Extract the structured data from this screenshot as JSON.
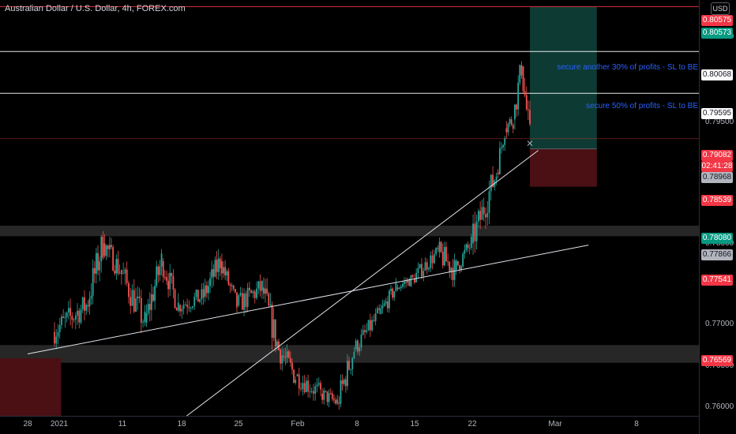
{
  "header": {
    "title": "Australian Dollar / U.S. Dollar, 4h, FOREX.com",
    "currency": "USD"
  },
  "price_axis": {
    "ticks": [
      "0.80500",
      "0.79500",
      "0.78000",
      "0.77000",
      "0.76500",
      "0.76000"
    ]
  },
  "price_tags": [
    {
      "value": "0.80575",
      "bg": "#f23645",
      "fg": "#ffffff"
    },
    {
      "value": "0.80573",
      "bg": "#089981",
      "fg": "#ffffff"
    },
    {
      "value": "0.80068",
      "bg": "#ffffff",
      "fg": "#131722"
    },
    {
      "value": "0.79595",
      "bg": "#ffffff",
      "fg": "#131722"
    },
    {
      "value": "0.79082",
      "bg": "#f23645",
      "fg": "#ffffff"
    },
    {
      "value": "02:41:28",
      "bg": "#f23645",
      "fg": "#ffffff"
    },
    {
      "value": "0.78968",
      "bg": "#b2b5be",
      "fg": "#131722"
    },
    {
      "value": "0.78539",
      "bg": "#f23645",
      "fg": "#ffffff"
    },
    {
      "value": "0.78080",
      "bg": "#089981",
      "fg": "#ffffff"
    },
    {
      "value": "0.77866",
      "bg": "#b2b5be",
      "fg": "#131722"
    },
    {
      "value": "0.77541",
      "bg": "#f23645",
      "fg": "#ffffff"
    },
    {
      "value": "0.76569",
      "bg": "#f23645",
      "fg": "#ffffff"
    }
  ],
  "time_axis": {
    "labels": [
      "28",
      "2021",
      "11",
      "18",
      "25",
      "Feb",
      "8",
      "15",
      "22",
      "Mar",
      "8"
    ]
  },
  "annotations": [
    {
      "text": "secure another 30% of profits - SL to BE"
    },
    {
      "text": "secure 50% of profits - SL to BE"
    }
  ],
  "colors": {
    "background": "#000000",
    "up": "#26a69a",
    "down": "#ef5350",
    "profit_zone": "#0d3a33",
    "loss_zone": "#4a1014",
    "zone_gray": "#2b2b2b"
  },
  "chart_data": {
    "type": "candlestick",
    "symbol": "Australian Dollar / U.S. Dollar",
    "timeframe": "4h",
    "source": "FOREX.com",
    "x_labels": [
      "28",
      "2021",
      "11",
      "18",
      "25",
      "Feb",
      "8",
      "15",
      "22",
      "Mar",
      "8"
    ],
    "ylim": [
      0.7595,
      0.8065
    ],
    "horizontal_lines": [
      0.80575,
      0.80068,
      0.79595,
      0.79082
    ],
    "trade": {
      "entry": 0.78968,
      "target": 0.80575,
      "stop": 0.78539
    },
    "zones": [
      {
        "low": 0.7798,
        "high": 0.781
      },
      {
        "low": 0.7655,
        "high": 0.7675
      }
    ],
    "trend_lines": [
      {
        "from": [
          "2020-12-28",
          0.7665
        ],
        "to": [
          "2021-03-05",
          0.7788
        ]
      },
      {
        "from": [
          "2021-01-16",
          0.7595
        ],
        "to": [
          "2021-02-27",
          0.7895
        ]
      }
    ],
    "ohlc": [
      [
        "2020-12-31",
        0.764,
        0.77,
        0.762,
        0.769
      ],
      [
        "2021-01-04",
        0.769,
        0.7745,
        0.766,
        0.772
      ],
      [
        "2021-01-06",
        0.772,
        0.781,
        0.77,
        0.779
      ],
      [
        "2021-01-08",
        0.779,
        0.7805,
        0.773,
        0.776
      ],
      [
        "2021-01-11",
        0.776,
        0.7775,
        0.768,
        0.77
      ],
      [
        "2021-01-13",
        0.77,
        0.7785,
        0.769,
        0.777
      ],
      [
        "2021-01-15",
        0.777,
        0.778,
        0.77,
        0.772
      ],
      [
        "2021-01-18",
        0.772,
        0.774,
        0.768,
        0.773
      ],
      [
        "2021-01-20",
        0.773,
        0.779,
        0.771,
        0.777
      ],
      [
        "2021-01-22",
        0.777,
        0.7775,
        0.771,
        0.772
      ],
      [
        "2021-01-25",
        0.772,
        0.776,
        0.769,
        0.774
      ],
      [
        "2021-01-27",
        0.774,
        0.775,
        0.765,
        0.767
      ],
      [
        "2021-01-29",
        0.767,
        0.77,
        0.762,
        0.764
      ],
      [
        "2021-02-01",
        0.764,
        0.766,
        0.7595,
        0.762
      ],
      [
        "2021-02-03",
        0.762,
        0.764,
        0.759,
        0.761
      ],
      [
        "2021-02-05",
        0.761,
        0.768,
        0.7595,
        0.767
      ],
      [
        "2021-02-08",
        0.767,
        0.772,
        0.766,
        0.771
      ],
      [
        "2021-02-10",
        0.771,
        0.775,
        0.77,
        0.774
      ],
      [
        "2021-02-12",
        0.774,
        0.776,
        0.772,
        0.775
      ],
      [
        "2021-02-15",
        0.775,
        0.779,
        0.774,
        0.778
      ],
      [
        "2021-02-17",
        0.778,
        0.781,
        0.773,
        0.776
      ],
      [
        "2021-02-19",
        0.776,
        0.78,
        0.774,
        0.779
      ],
      [
        "2021-02-22",
        0.779,
        0.788,
        0.778,
        0.787
      ],
      [
        "2021-02-23",
        0.787,
        0.793,
        0.786,
        0.792
      ],
      [
        "2021-02-24",
        0.792,
        0.795,
        0.789,
        0.793
      ],
      [
        "2021-02-25",
        0.793,
        0.8007,
        0.792,
        0.799
      ],
      [
        "2021-02-26",
        0.799,
        0.8,
        0.789,
        0.7908
      ]
    ]
  }
}
